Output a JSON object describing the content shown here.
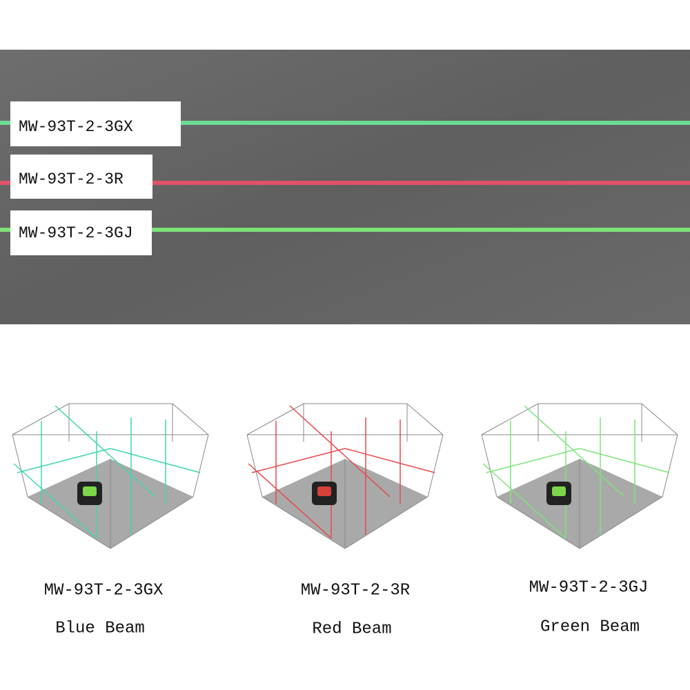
{
  "banner": {
    "labels": [
      "MW-93T-2-3GX",
      "MW-93T-2-3R",
      "MW-93T-2-3GJ"
    ]
  },
  "panels": [
    {
      "model": "MW-93T-2-3GX",
      "beam": "Blue Beam"
    },
    {
      "model": "MW-93T-2-3R",
      "beam": "Red Beam"
    },
    {
      "model": "MW-93T-2-3GJ",
      "beam": "Green Beam"
    }
  ]
}
